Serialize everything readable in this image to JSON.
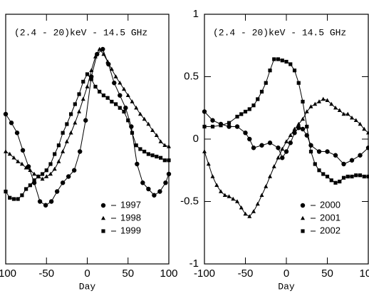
{
  "chart_data": [
    {
      "type": "line",
      "annotation": "(2.4 - 20)keV - 14.5 GHz",
      "x_label": "Day",
      "xlim": [
        -100,
        100
      ],
      "xticks": [
        -100,
        -50,
        0,
        50,
        100
      ],
      "ylim": [
        -1,
        1
      ],
      "legend": "lower right",
      "series": [
        {
          "name": "1997",
          "color": "#000000",
          "marker": "circle",
          "x": [
            -100,
            -93,
            -86,
            -79,
            -72,
            -65,
            -58,
            -51,
            -44,
            -37,
            -30,
            -23,
            -16,
            -9,
            -2,
            5,
            12,
            19,
            26,
            33,
            40,
            47,
            54,
            61,
            68,
            75,
            82,
            89,
            96,
            100
          ],
          "values": [
            0.2,
            0.13,
            0.05,
            -0.09,
            -0.22,
            -0.35,
            -0.5,
            -0.53,
            -0.5,
            -0.42,
            -0.35,
            -0.3,
            -0.25,
            -0.1,
            0.15,
            0.5,
            0.68,
            0.72,
            0.6,
            0.45,
            0.35,
            0.25,
            0.1,
            -0.2,
            -0.35,
            -0.4,
            -0.45,
            -0.42,
            -0.35,
            -0.28
          ]
        },
        {
          "name": "1998",
          "color": "#000000",
          "marker": "triangle",
          "x": [
            -100,
            -95,
            -90,
            -85,
            -80,
            -75,
            -70,
            -65,
            -60,
            -55,
            -50,
            -45,
            -40,
            -35,
            -30,
            -25,
            -20,
            -15,
            -10,
            -5,
            0,
            5,
            10,
            15,
            20,
            25,
            30,
            35,
            40,
            45,
            50,
            55,
            60,
            65,
            70,
            75,
            80,
            85,
            90,
            95,
            100
          ],
          "values": [
            -0.1,
            -0.12,
            -0.15,
            -0.18,
            -0.2,
            -0.23,
            -0.25,
            -0.28,
            -0.3,
            -0.32,
            -0.3,
            -0.28,
            -0.24,
            -0.18,
            -0.1,
            -0.02,
            0.05,
            0.13,
            0.22,
            0.32,
            0.42,
            0.55,
            0.66,
            0.72,
            0.68,
            0.62,
            0.56,
            0.5,
            0.45,
            0.4,
            0.35,
            0.3,
            0.25,
            0.2,
            0.16,
            0.12,
            0.07,
            0.03,
            -0.02,
            -0.05,
            -0.06
          ]
        },
        {
          "name": "1999",
          "color": "#000000",
          "marker": "square",
          "x": [
            -100,
            -95,
            -90,
            -85,
            -80,
            -75,
            -70,
            -65,
            -60,
            -55,
            -50,
            -45,
            -40,
            -35,
            -30,
            -25,
            -20,
            -15,
            -10,
            -5,
            0,
            5,
            10,
            15,
            20,
            25,
            30,
            35,
            40,
            45,
            50,
            55,
            60,
            65,
            70,
            75,
            80,
            85,
            90,
            95,
            100
          ],
          "values": [
            -0.42,
            -0.47,
            -0.48,
            -0.48,
            -0.45,
            -0.4,
            -0.37,
            -0.33,
            -0.3,
            -0.28,
            -0.25,
            -0.2,
            -0.12,
            -0.05,
            0.05,
            0.12,
            0.2,
            0.28,
            0.36,
            0.46,
            0.52,
            0.48,
            0.42,
            0.38,
            0.35,
            0.33,
            0.3,
            0.28,
            0.25,
            0.22,
            0.15,
            0.05,
            -0.05,
            -0.08,
            -0.1,
            -0.12,
            -0.13,
            -0.14,
            -0.15,
            -0.17,
            -0.17
          ]
        }
      ]
    },
    {
      "type": "line",
      "annotation": "(2.4 - 20)keV - 14.5 GHz",
      "x_label": "Day",
      "xlim": [
        -100,
        100
      ],
      "xticks": [
        -100,
        -50,
        0,
        50,
        100
      ],
      "ylim": [
        -1,
        1
      ],
      "yticks": [
        -1,
        -0.5,
        0,
        0.5,
        1
      ],
      "legend": "lower right",
      "series": [
        {
          "name": "2000",
          "color": "#000000",
          "marker": "circle",
          "x": [
            -100,
            -90,
            -80,
            -70,
            -60,
            -50,
            -45,
            -40,
            -30,
            -20,
            -10,
            -5,
            0,
            5,
            10,
            15,
            20,
            25,
            30,
            40,
            50,
            60,
            70,
            80,
            90,
            100
          ],
          "values": [
            0.22,
            0.15,
            0.12,
            0.1,
            0.1,
            0.05,
            0.0,
            -0.07,
            -0.05,
            -0.03,
            -0.07,
            -0.15,
            -0.1,
            -0.03,
            0.05,
            0.09,
            0.08,
            0.03,
            -0.05,
            -0.1,
            -0.1,
            -0.13,
            -0.2,
            -0.17,
            -0.13,
            -0.07
          ]
        },
        {
          "name": "2001",
          "color": "#000000",
          "marker": "triangle",
          "x": [
            -100,
            -95,
            -90,
            -85,
            -80,
            -75,
            -70,
            -65,
            -60,
            -55,
            -50,
            -45,
            -40,
            -35,
            -30,
            -25,
            -20,
            -15,
            -10,
            -5,
            0,
            5,
            10,
            15,
            20,
            25,
            30,
            35,
            40,
            45,
            50,
            55,
            60,
            65,
            70,
            75,
            80,
            85,
            90,
            95,
            100
          ],
          "values": [
            -0.1,
            -0.2,
            -0.3,
            -0.37,
            -0.42,
            -0.45,
            -0.46,
            -0.48,
            -0.5,
            -0.55,
            -0.6,
            -0.62,
            -0.58,
            -0.52,
            -0.45,
            -0.38,
            -0.3,
            -0.22,
            -0.15,
            -0.08,
            -0.02,
            0.03,
            0.08,
            0.12,
            0.16,
            0.22,
            0.26,
            0.28,
            0.3,
            0.32,
            0.31,
            0.28,
            0.25,
            0.23,
            0.2,
            0.2,
            0.17,
            0.15,
            0.12,
            0.08,
            0.05
          ]
        },
        {
          "name": "2002",
          "color": "#000000",
          "marker": "square",
          "x": [
            -100,
            -90,
            -80,
            -70,
            -60,
            -55,
            -50,
            -45,
            -40,
            -35,
            -30,
            -25,
            -20,
            -15,
            -10,
            -5,
            0,
            5,
            10,
            15,
            20,
            25,
            30,
            35,
            40,
            45,
            50,
            55,
            60,
            65,
            70,
            75,
            80,
            85,
            90,
            95,
            100
          ],
          "values": [
            0.1,
            0.1,
            0.11,
            0.13,
            0.18,
            0.2,
            0.22,
            0.24,
            0.27,
            0.32,
            0.38,
            0.45,
            0.55,
            0.64,
            0.64,
            0.63,
            0.62,
            0.6,
            0.55,
            0.45,
            0.3,
            0.1,
            -0.1,
            -0.2,
            -0.25,
            -0.28,
            -0.3,
            -0.33,
            -0.35,
            -0.34,
            -0.31,
            -0.3,
            -0.3,
            -0.29,
            -0.29,
            -0.3,
            -0.3
          ]
        }
      ]
    }
  ]
}
